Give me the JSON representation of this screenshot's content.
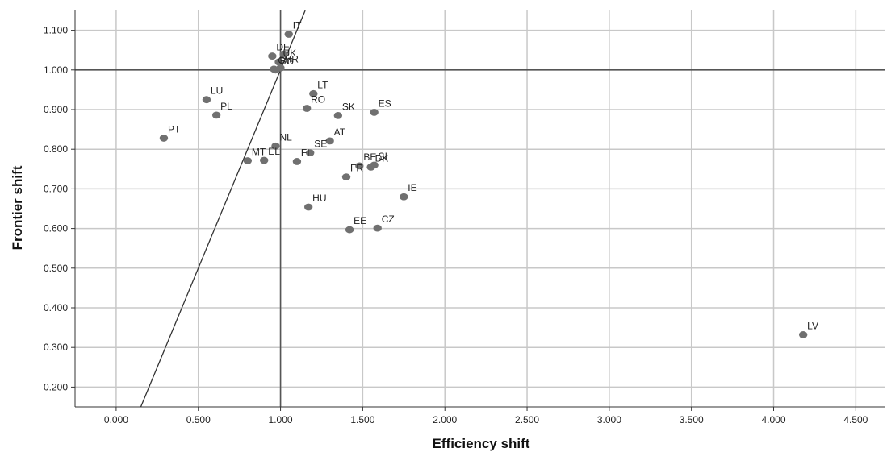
{
  "chart_data": {
    "type": "scatter",
    "xlabel": "Efficiency shift",
    "ylabel": "Frontier shift",
    "xlim": [
      -0.25,
      4.68
    ],
    "ylim": [
      0.15,
      1.15
    ],
    "x_ticks": [
      "0.000",
      "0.500",
      "1.000",
      "1.500",
      "2.000",
      "2.500",
      "3.000",
      "3.500",
      "4.000",
      "4.500"
    ],
    "y_ticks": [
      "0.200",
      "0.300",
      "0.400",
      "0.500",
      "0.600",
      "0.700",
      "0.800",
      "0.900",
      "1.000",
      "1.100"
    ],
    "grid": true,
    "reference_lines": {
      "vertical_x": 1.0,
      "horizontal_y": 1.0,
      "diagonal": "y = x"
    },
    "points": [
      {
        "label": "IT",
        "x": 1.05,
        "y": 1.09
      },
      {
        "label": "DE",
        "x": 0.95,
        "y": 1.035
      },
      {
        "label": "",
        "x": 1.02,
        "y": 1.04
      },
      {
        "label": "UK",
        "x": 0.99,
        "y": 1.02
      },
      {
        "label": "CY",
        "x": 0.96,
        "y": 1.002
      },
      {
        "label": "BG",
        "x": 0.97,
        "y": 1.0
      },
      {
        "label": "HR",
        "x": 1.0,
        "y": 1.005
      },
      {
        "label": "LT",
        "x": 1.2,
        "y": 0.94
      },
      {
        "label": "LU",
        "x": 0.55,
        "y": 0.925
      },
      {
        "label": "PL",
        "x": 0.61,
        "y": 0.886
      },
      {
        "label": "RO",
        "x": 1.16,
        "y": 0.903
      },
      {
        "label": "SK",
        "x": 1.35,
        "y": 0.885
      },
      {
        "label": "ES",
        "x": 1.57,
        "y": 0.893
      },
      {
        "label": "PT",
        "x": 0.29,
        "y": 0.828
      },
      {
        "label": "AT",
        "x": 1.3,
        "y": 0.821
      },
      {
        "label": "NL",
        "x": 0.97,
        "y": 0.808
      },
      {
        "label": "SE",
        "x": 1.18,
        "y": 0.791
      },
      {
        "label": "MT",
        "x": 0.8,
        "y": 0.771
      },
      {
        "label": "EL",
        "x": 0.9,
        "y": 0.772
      },
      {
        "label": "FI",
        "x": 1.1,
        "y": 0.769
      },
      {
        "label": "BE",
        "x": 1.48,
        "y": 0.758
      },
      {
        "label": "SI",
        "x": 1.57,
        "y": 0.76
      },
      {
        "label": "DK",
        "x": 1.55,
        "y": 0.755
      },
      {
        "label": "FR",
        "x": 1.4,
        "y": 0.73
      },
      {
        "label": "IE",
        "x": 1.75,
        "y": 0.68
      },
      {
        "label": "HU",
        "x": 1.17,
        "y": 0.654
      },
      {
        "label": "EE",
        "x": 1.42,
        "y": 0.597
      },
      {
        "label": "CZ",
        "x": 1.59,
        "y": 0.601
      },
      {
        "label": "LV",
        "x": 4.18,
        "y": 0.332
      }
    ],
    "colors": {
      "point": "#707070",
      "grid": "#c8c8c8",
      "reference": "#555555",
      "diagonal": "#333333",
      "axis": "#333333"
    }
  }
}
